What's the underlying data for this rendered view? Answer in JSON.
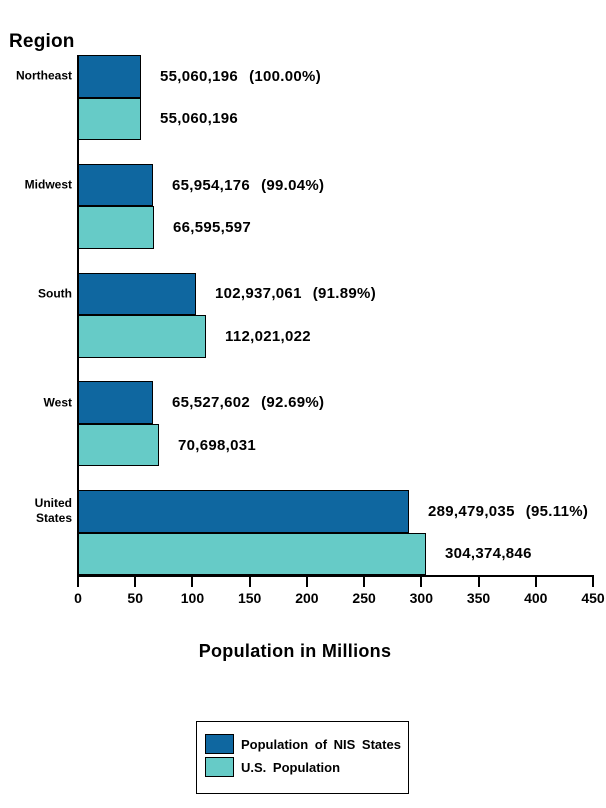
{
  "chart_data": {
    "type": "bar",
    "orientation": "horizontal",
    "title": "Region",
    "xlabel": "Population in Millions",
    "xlim": [
      0,
      450
    ],
    "xticks": [
      0,
      50,
      100,
      150,
      200,
      250,
      300,
      350,
      400,
      450
    ],
    "grid": false,
    "categories": [
      "Northeast",
      "Midwest",
      "South",
      "West",
      "United States"
    ],
    "series": [
      {
        "name": "Population of NIS States",
        "color": "#0F67A0",
        "values_millions": [
          55.060196,
          65.954176,
          102.937061,
          65.527602,
          289.479035
        ],
        "value_labels": [
          "55,060,196",
          "65,954,176",
          "102,937,061",
          "65,527,602",
          "289,479,035"
        ],
        "pct_labels": [
          "(100.00%)",
          "(99.04%)",
          "(91.89%)",
          "(92.69%)",
          "(95.11%)"
        ]
      },
      {
        "name": "U.S. Population",
        "color": "#66CBC7",
        "values_millions": [
          55.060196,
          66.595597,
          112.021022,
          70.698031,
          304.374846
        ],
        "value_labels": [
          "55,060,196",
          "66,595,597",
          "112,021,022",
          "70,698,031",
          "304,374,846"
        ],
        "pct_labels": [
          null,
          null,
          null,
          null,
          null
        ]
      }
    ],
    "legend": {
      "position": "bottom",
      "entries": [
        {
          "label": "Population of NIS States",
          "color": "#0F67A0"
        },
        {
          "label": "U.S. Population",
          "color": "#66CBC7"
        }
      ]
    }
  }
}
